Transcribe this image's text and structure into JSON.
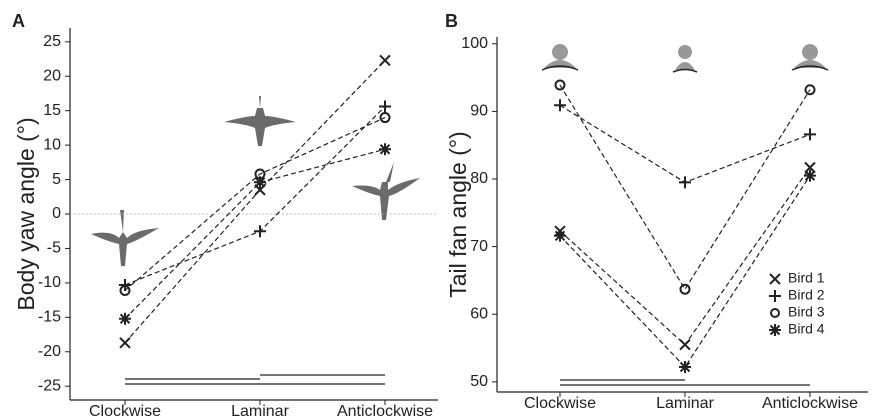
{
  "chart_data": [
    {
      "type": "line",
      "panel_label": "A",
      "ylabel": "Body yaw angle (°)",
      "categories": [
        "Clockwise",
        "Laminar",
        "Anticlockwise"
      ],
      "ylim": [
        -27,
        27
      ],
      "yticks": [
        -25,
        -20,
        -15,
        -10,
        -5,
        0,
        5,
        10,
        15,
        20,
        25
      ],
      "reference_line": 0,
      "series": [
        {
          "name": "Bird 1",
          "marker": "x",
          "color": "#222",
          "values": [
            -18.7,
            3.5,
            22.3
          ]
        },
        {
          "name": "Bird 2",
          "marker": "+",
          "color": "#222",
          "values": [
            -10.3,
            -2.5,
            15.6
          ]
        },
        {
          "name": "Bird 3",
          "marker": "o",
          "color": "#222",
          "values": [
            -11.1,
            5.8,
            14.0
          ]
        },
        {
          "name": "Bird 4",
          "marker": "*",
          "color": "#222",
          "values": [
            -15.2,
            4.6,
            9.4
          ]
        }
      ]
    },
    {
      "type": "line",
      "panel_label": "B",
      "ylabel": "Tail fan angle (°)",
      "categories": [
        "Clockwise",
        "Laminar",
        "Anticlockwise"
      ],
      "ylim": [
        48.5,
        101
      ],
      "yticks": [
        50,
        60,
        70,
        80,
        90,
        100
      ],
      "legend": "lower right",
      "series": [
        {
          "name": "Bird 1",
          "marker": "x",
          "color": "#222",
          "values": [
            72.3,
            55.5,
            81.7
          ]
        },
        {
          "name": "Bird 2",
          "marker": "+",
          "color": "#222",
          "values": [
            90.9,
            79.5,
            86.6
          ]
        },
        {
          "name": "Bird 3",
          "marker": "o",
          "color": "#222",
          "values": [
            93.9,
            63.7,
            93.2
          ]
        },
        {
          "name": "Bird 4",
          "marker": "*",
          "color": "#222",
          "values": [
            71.6,
            52.2,
            80.5
          ]
        }
      ]
    }
  ]
}
